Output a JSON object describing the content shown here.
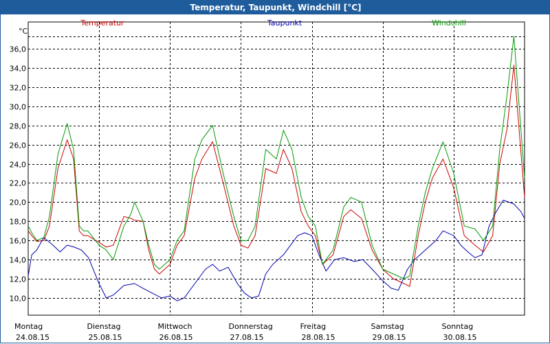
{
  "window": {
    "title": "Temperatur, Taupunkt, Windchill [°C]"
  },
  "chart_data": {
    "type": "line",
    "title": "Temperatur, Taupunkt, Windchill [°C]",
    "ylabel": "°C",
    "ylim": [
      8.2,
      38.8
    ],
    "xlim": [
      0,
      7
    ],
    "grid": true,
    "y_ticks": [
      10,
      12,
      14,
      16,
      18,
      20,
      22,
      24,
      26,
      28,
      30,
      32,
      34,
      36
    ],
    "y_tick_labels": [
      "10,0",
      "12,0",
      "14,0",
      "16,0",
      "18,0",
      "20,0",
      "22,0",
      "24,0",
      "26,0",
      "28,0",
      "30,0",
      "32,0",
      "34,0",
      "36,0"
    ],
    "days": [
      {
        "name": "Montag",
        "date": "24.08.15"
      },
      {
        "name": "Dienstag",
        "date": "25.08.15"
      },
      {
        "name": "Mittwoch",
        "date": "26.08.15"
      },
      {
        "name": "Donnerstag",
        "date": "27.08.15"
      },
      {
        "name": "Freitag",
        "date": "28.08.15"
      },
      {
        "name": "Samstag",
        "date": "29.08.15"
      },
      {
        "name": "Sonntag",
        "date": "30.08.15"
      }
    ],
    "series": [
      {
        "name": "Temperatur",
        "color": "#cc0000",
        "x": [
          0,
          0.05,
          0.12,
          0.22,
          0.3,
          0.42,
          0.55,
          0.64,
          0.72,
          0.78,
          0.84,
          1.0,
          1.1,
          1.2,
          1.35,
          1.45,
          1.5,
          1.62,
          1.7,
          1.78,
          1.85,
          2.0,
          2.1,
          2.2,
          2.35,
          2.45,
          2.6,
          2.75,
          2.9,
          3.0,
          3.1,
          3.2,
          3.35,
          3.5,
          3.6,
          3.72,
          3.85,
          3.95,
          4.05,
          4.15,
          4.3,
          4.45,
          4.55,
          4.7,
          4.85,
          5.0,
          5.15,
          5.3,
          5.38,
          5.5,
          5.6,
          5.7,
          5.85,
          6.0,
          6.15,
          6.3,
          6.42,
          6.55,
          6.65,
          6.75,
          6.85,
          7.0
        ],
        "y": [
          17.0,
          16.5,
          15.9,
          16.0,
          17.5,
          23.5,
          26.5,
          24.5,
          17.0,
          16.5,
          16.5,
          15.8,
          15.3,
          15.5,
          18.5,
          18.3,
          18.1,
          18.0,
          15.0,
          13.0,
          12.5,
          13.5,
          15.5,
          16.5,
          22.5,
          24.5,
          26.3,
          22.0,
          17.5,
          15.5,
          15.2,
          16.5,
          23.5,
          23.0,
          25.5,
          23.5,
          19.0,
          17.5,
          16.5,
          13.5,
          14.5,
          18.5,
          19.2,
          18.3,
          15.0,
          13.0,
          12.0,
          11.5,
          11.2,
          16.5,
          20.0,
          22.5,
          24.5,
          21.5,
          16.5,
          15.5,
          14.8,
          16.5,
          24.0,
          27.5,
          34.3,
          20.5
        ]
      },
      {
        "name": "Taupunkt",
        "color": "#0000aa",
        "x": [
          0,
          0.05,
          0.12,
          0.22,
          0.35,
          0.45,
          0.55,
          0.65,
          0.75,
          0.85,
          1.0,
          1.1,
          1.2,
          1.35,
          1.5,
          1.62,
          1.75,
          1.88,
          2.0,
          2.1,
          2.2,
          2.35,
          2.5,
          2.6,
          2.7,
          2.82,
          2.95,
          3.05,
          3.15,
          3.25,
          3.35,
          3.45,
          3.6,
          3.8,
          3.9,
          4.0,
          4.1,
          4.2,
          4.32,
          4.45,
          4.6,
          4.72,
          4.85,
          5.0,
          5.12,
          5.22,
          5.35,
          5.45,
          5.6,
          5.75,
          5.85,
          6.0,
          6.1,
          6.2,
          6.3,
          6.4,
          6.5,
          6.6,
          6.7,
          6.85,
          6.95,
          7.0
        ],
        "y": [
          12.3,
          14.5,
          15.0,
          16.3,
          15.5,
          14.8,
          15.5,
          15.3,
          15.0,
          14.2,
          11.5,
          10.0,
          10.3,
          11.3,
          11.5,
          11.0,
          10.5,
          10.0,
          10.2,
          9.7,
          10.0,
          11.5,
          13.0,
          13.5,
          12.8,
          13.2,
          11.5,
          10.5,
          10.0,
          10.2,
          12.5,
          13.5,
          14.5,
          16.5,
          16.8,
          16.5,
          14.5,
          12.8,
          14.0,
          14.2,
          13.8,
          14.0,
          13.0,
          11.8,
          11.0,
          10.8,
          13.0,
          14.0,
          15.0,
          16.0,
          17.0,
          16.5,
          15.5,
          14.8,
          14.2,
          14.5,
          17.5,
          19.0,
          20.2,
          19.8,
          19.0,
          18.3
        ]
      },
      {
        "name": "Windchill",
        "color": "#009900",
        "x": [
          0,
          0.05,
          0.12,
          0.22,
          0.3,
          0.42,
          0.55,
          0.64,
          0.72,
          0.78,
          0.84,
          1.0,
          1.1,
          1.2,
          1.35,
          1.45,
          1.5,
          1.62,
          1.7,
          1.78,
          1.85,
          2.0,
          2.1,
          2.2,
          2.35,
          2.45,
          2.6,
          2.75,
          2.9,
          3.0,
          3.1,
          3.2,
          3.35,
          3.5,
          3.6,
          3.72,
          3.85,
          3.95,
          4.05,
          4.15,
          4.3,
          4.45,
          4.55,
          4.7,
          4.85,
          5.0,
          5.15,
          5.3,
          5.38,
          5.5,
          5.6,
          5.7,
          5.85,
          6.0,
          6.15,
          6.3,
          6.42,
          6.55,
          6.65,
          6.75,
          6.85,
          7.0
        ],
        "y": [
          17.5,
          16.8,
          16.0,
          16.3,
          18.5,
          25.0,
          28.2,
          25.5,
          17.5,
          17.0,
          17.0,
          15.5,
          15.0,
          14.0,
          17.5,
          18.8,
          20.0,
          18.0,
          15.5,
          13.5,
          13.0,
          14.0,
          16.0,
          17.0,
          24.5,
          26.5,
          28.0,
          23.0,
          18.5,
          16.0,
          16.0,
          17.5,
          25.5,
          24.5,
          27.5,
          25.5,
          20.5,
          18.5,
          17.5,
          13.5,
          15.0,
          19.5,
          20.5,
          20.0,
          15.5,
          13.0,
          12.5,
          12.0,
          12.3,
          17.5,
          21.0,
          23.5,
          26.3,
          23.0,
          17.5,
          17.2,
          16.0,
          17.5,
          25.5,
          31.0,
          37.3,
          22.5
        ]
      }
    ]
  }
}
